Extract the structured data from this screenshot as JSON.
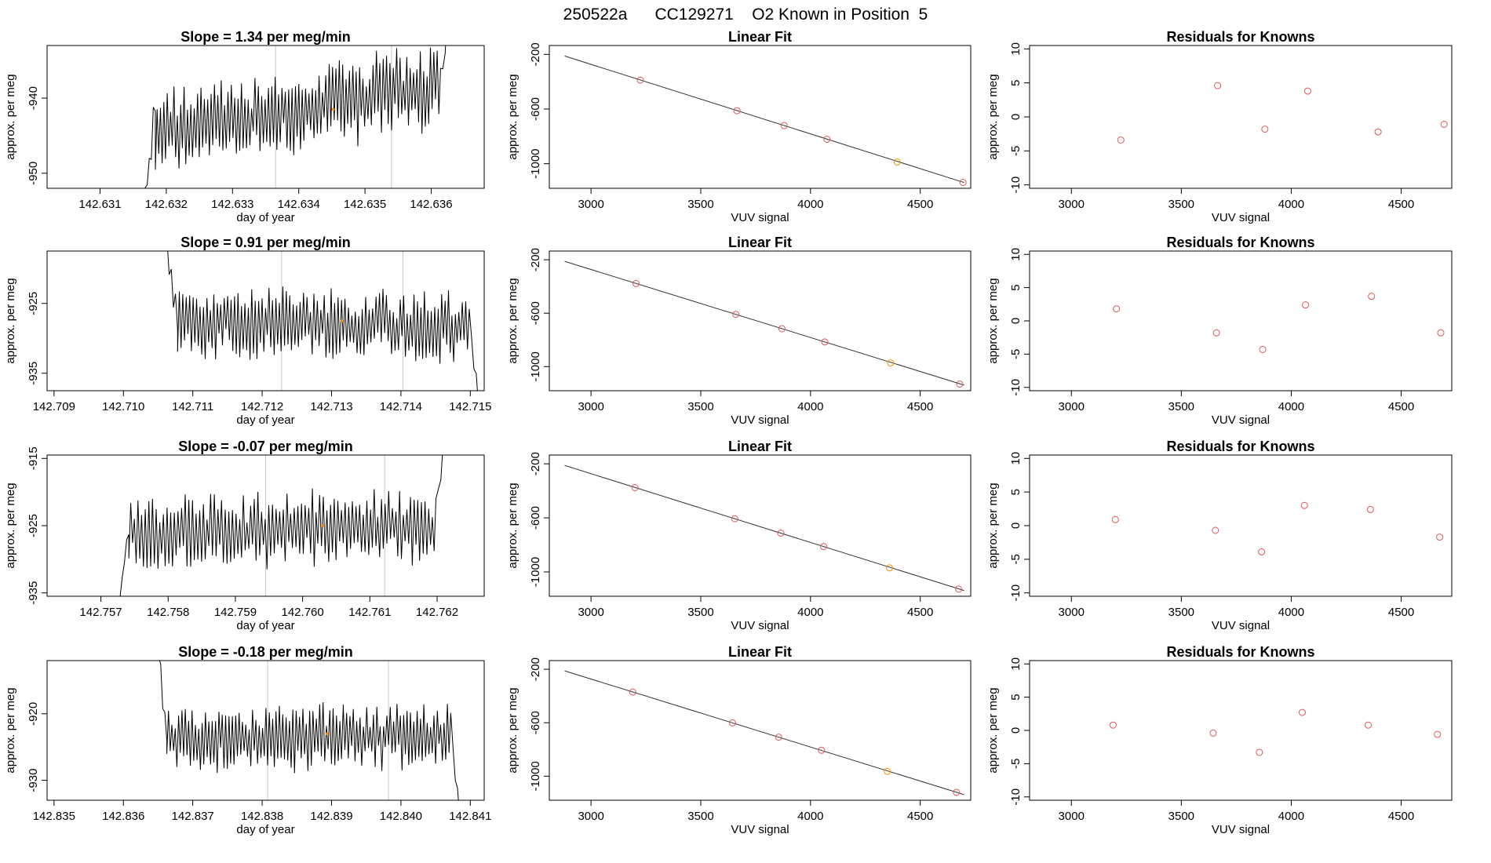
{
  "header": {
    "run_id": "250522a",
    "cylinder": "CC129271",
    "description": "O2 Known in Position  5"
  },
  "colors": {
    "trace": "#000000",
    "frame": "#000000",
    "vline": "#c8c8c8",
    "point": "#e0555a",
    "highlight": "#ff8c00",
    "fit_line": "#333333"
  },
  "chart_data": [
    {
      "type": "line",
      "row": 0,
      "panel": "trace",
      "title": "Slope =  1.34  per meg/min",
      "xlabel": "day of year",
      "ylabel": "approx. per meg",
      "xlim": [
        142.6302,
        142.6368
      ],
      "ylim": [
        -952,
        -933
      ],
      "xticks": [
        "142.631",
        "142.632",
        "142.633",
        "142.634",
        "142.635",
        "142.636"
      ],
      "yticks": [
        "-950",
        "-940"
      ],
      "vlines": [
        142.63365,
        142.6354
      ],
      "trace": {
        "x_start": 142.63165,
        "x_end": 142.63628,
        "mean": -941.5,
        "rise": 6.0,
        "amp": 5.0,
        "n": 170,
        "seed": 11,
        "start_y": -955,
        "end_y": -925
      },
      "marker": {
        "x": 142.63452,
        "y": -941.5
      }
    },
    {
      "type": "line",
      "row": 1,
      "panel": "trace",
      "title": "Slope =  0.91  per meg/min",
      "xlabel": "day of year",
      "ylabel": "approx. per meg",
      "xlim": [
        142.7089,
        142.7152
      ],
      "ylim": [
        -937.5,
        -917.5
      ],
      "xticks": [
        "142.709",
        "142.710",
        "142.711",
        "142.712",
        "142.713",
        "142.714",
        "142.715"
      ],
      "yticks": [
        "-935",
        "-925"
      ],
      "vlines": [
        142.71228,
        142.71403
      ],
      "trace": {
        "x_start": 142.7106,
        "x_end": 142.71512,
        "mean": -928.0,
        "rise": -1.0,
        "amp": 4.5,
        "n": 170,
        "seed": 23,
        "start_y": -915,
        "end_y": -940
      },
      "marker": {
        "x": 142.71315,
        "y": -927.5
      }
    },
    {
      "type": "line",
      "row": 2,
      "panel": "trace",
      "title": "Slope =  -0.07  per meg/min",
      "xlabel": "day of year",
      "ylabel": "approx. per meg",
      "xlim": [
        142.7562,
        142.7627
      ],
      "ylim": [
        -935.5,
        -914.5
      ],
      "xticks": [
        "142.757",
        "142.758",
        "142.759",
        "142.760",
        "142.761",
        "142.762"
      ],
      "yticks": [
        "-935",
        "-925",
        "-915"
      ],
      "vlines": [
        142.75945,
        142.76122
      ],
      "trace": {
        "x_start": 142.75722,
        "x_end": 142.76213,
        "mean": -925.5,
        "rise": 1.0,
        "amp": 4.8,
        "n": 170,
        "seed": 37,
        "start_y": -940,
        "end_y": -910
      },
      "marker": {
        "x": 142.7603,
        "y": -925.0
      }
    },
    {
      "type": "line",
      "row": 3,
      "panel": "trace",
      "title": "Slope =  -0.18  per meg/min",
      "xlabel": "day of year",
      "ylabel": "approx. per meg",
      "xlim": [
        142.8349,
        142.8412
      ],
      "ylim": [
        -933,
        -912
      ],
      "xticks": [
        "142.835",
        "142.836",
        "142.837",
        "142.838",
        "142.839",
        "142.840",
        "142.841"
      ],
      "yticks": [
        "-930",
        "-920"
      ],
      "vlines": [
        142.83808,
        142.83982
      ],
      "trace": {
        "x_start": 142.83645,
        "x_end": 142.84085,
        "mean": -923.5,
        "rise": 0.5,
        "amp": 4.5,
        "n": 170,
        "seed": 53,
        "start_y": -905,
        "end_y": -935
      },
      "marker": {
        "x": 142.83893,
        "y": -923.0
      }
    },
    {
      "type": "scatter",
      "row": 0,
      "panel": "fit",
      "title": "Linear Fit",
      "xlabel": "VUV signal",
      "ylabel": "approx. per meg",
      "xlim": [
        2810,
        4730
      ],
      "ylim": [
        -1180,
        -135
      ],
      "xticks": [
        3000,
        3500,
        4000,
        4500
      ],
      "yticks": [
        -1000,
        -600,
        -200
      ],
      "line": [
        [
          2880,
          -212
        ],
        [
          4700,
          -1138
        ]
      ],
      "points": [
        [
          3225,
          -388
        ],
        [
          3665,
          -612
        ],
        [
          3880,
          -721
        ],
        [
          4075,
          -821
        ],
        [
          4395,
          -988
        ],
        [
          4695,
          -1137
        ]
      ],
      "highlight": [
        4395,
        -988
      ]
    },
    {
      "type": "scatter",
      "row": 1,
      "panel": "fit",
      "title": "Linear Fit",
      "xlabel": "VUV signal",
      "ylabel": "approx. per meg",
      "xlim": [
        2810,
        4730
      ],
      "ylim": [
        -1180,
        -135
      ],
      "xticks": [
        3000,
        3500,
        4000,
        4500
      ],
      "yticks": [
        -1000,
        -600,
        -200
      ],
      "line": [
        [
          2880,
          -212
        ],
        [
          4700,
          -1138
        ]
      ],
      "points": [
        [
          3205,
          -378
        ],
        [
          3660,
          -609
        ],
        [
          3870,
          -716
        ],
        [
          4065,
          -815
        ],
        [
          4365,
          -972
        ],
        [
          4680,
          -1130
        ]
      ],
      "highlight": [
        4365,
        -972
      ]
    },
    {
      "type": "scatter",
      "row": 2,
      "panel": "fit",
      "title": "Linear Fit",
      "xlabel": "VUV signal",
      "ylabel": "approx. per meg",
      "xlim": [
        2810,
        4730
      ],
      "ylim": [
        -1180,
        -135
      ],
      "xticks": [
        3000,
        3500,
        4000,
        4500
      ],
      "yticks": [
        -1000,
        -600,
        -200
      ],
      "line": [
        [
          2880,
          -212
        ],
        [
          4700,
          -1138
        ]
      ],
      "points": [
        [
          3200,
          -376
        ],
        [
          3655,
          -606
        ],
        [
          3865,
          -713
        ],
        [
          4060,
          -812
        ],
        [
          4360,
          -970
        ],
        [
          4675,
          -1127
        ]
      ],
      "highlight": [
        4360,
        -970
      ]
    },
    {
      "type": "scatter",
      "row": 3,
      "panel": "fit",
      "title": "Linear Fit",
      "xlabel": "VUV signal",
      "ylabel": "approx. per meg",
      "xlim": [
        2810,
        4730
      ],
      "ylim": [
        -1180,
        -135
      ],
      "xticks": [
        3000,
        3500,
        4000,
        4500
      ],
      "yticks": [
        -1000,
        -600,
        -200
      ],
      "line": [
        [
          2880,
          -212
        ],
        [
          4700,
          -1138
        ]
      ],
      "points": [
        [
          3190,
          -370
        ],
        [
          3645,
          -601
        ],
        [
          3855,
          -708
        ],
        [
          4050,
          -806
        ],
        [
          4350,
          -964
        ],
        [
          4665,
          -1121
        ]
      ],
      "highlight": [
        4350,
        -964
      ]
    },
    {
      "type": "scatter",
      "row": 0,
      "panel": "resid",
      "title": "Residuals for Knowns",
      "xlabel": "VUV signal",
      "ylabel": "approx. per meg",
      "xlim": [
        2810,
        4730
      ],
      "ylim": [
        -10.5,
        10.5
      ],
      "xticks": [
        3000,
        3500,
        4000,
        4500
      ],
      "yticks": [
        -10,
        -5,
        0,
        5,
        10
      ],
      "points": [
        [
          3225,
          -3.4
        ],
        [
          3665,
          4.6
        ],
        [
          3880,
          -1.8
        ],
        [
          4075,
          3.8
        ],
        [
          4395,
          -2.2
        ],
        [
          4695,
          -1.1
        ]
      ]
    },
    {
      "type": "scatter",
      "row": 1,
      "panel": "resid",
      "title": "Residuals for Knowns",
      "xlabel": "VUV signal",
      "ylabel": "approx. per meg",
      "xlim": [
        2810,
        4730
      ],
      "ylim": [
        -10.5,
        10.5
      ],
      "xticks": [
        3000,
        3500,
        4000,
        4500
      ],
      "yticks": [
        -10,
        -5,
        0,
        5,
        10
      ],
      "points": [
        [
          3205,
          1.8
        ],
        [
          3660,
          -1.8
        ],
        [
          3870,
          -4.3
        ],
        [
          4065,
          2.4
        ],
        [
          4365,
          3.7
        ],
        [
          4680,
          -1.8
        ]
      ]
    },
    {
      "type": "scatter",
      "row": 2,
      "panel": "resid",
      "title": "Residuals for Knowns",
      "xlabel": "VUV signal",
      "ylabel": "approx. per meg",
      "xlim": [
        2810,
        4730
      ],
      "ylim": [
        -10.5,
        10.5
      ],
      "xticks": [
        3000,
        3500,
        4000,
        4500
      ],
      "yticks": [
        -10,
        -5,
        0,
        5,
        10
      ],
      "points": [
        [
          3200,
          0.9
        ],
        [
          3655,
          -0.7
        ],
        [
          3865,
          -3.9
        ],
        [
          4060,
          3.0
        ],
        [
          4360,
          2.4
        ],
        [
          4675,
          -1.7
        ]
      ]
    },
    {
      "type": "scatter",
      "row": 3,
      "panel": "resid",
      "title": "Residuals for Knowns",
      "xlabel": "VUV signal",
      "ylabel": "approx. per meg",
      "xlim": [
        2810,
        4730
      ],
      "ylim": [
        -10.5,
        10.5
      ],
      "xticks": [
        3000,
        3500,
        4000,
        4500
      ],
      "yticks": [
        -10,
        -5,
        0,
        5,
        10
      ],
      "points": [
        [
          3190,
          0.8
        ],
        [
          3645,
          -0.4
        ],
        [
          3855,
          -3.3
        ],
        [
          4050,
          2.7
        ],
        [
          4350,
          0.8
        ],
        [
          4665,
          -0.6
        ]
      ]
    }
  ]
}
